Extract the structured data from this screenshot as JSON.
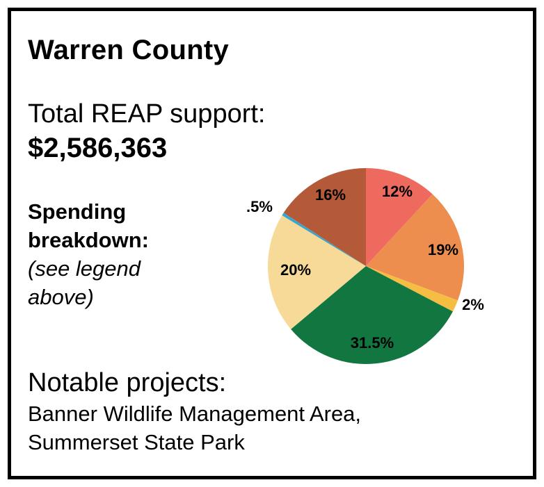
{
  "title": "Warren County",
  "support": {
    "label": "Total REAP support:",
    "value": "$2,586,363"
  },
  "breakdown": {
    "line1": "Spending",
    "line2": "breakdown:",
    "note1": "(see legend",
    "note2": "above)"
  },
  "projects": {
    "label": "Notable projects:",
    "items": [
      "Banner Wildlife Management Area,",
      "Summerset State Park"
    ]
  },
  "chart_data": {
    "type": "pie",
    "values": [
      12,
      19,
      2,
      31.5,
      20,
      0.5,
      16
    ],
    "labels": [
      "12%",
      "19%",
      "2%",
      "31.5%",
      "20%",
      ".5%",
      "16%"
    ],
    "colors": [
      "#EE6A5E",
      "#EE8E4E",
      "#F5BE43",
      "#117640",
      "#F8DA98",
      "#3AA6CF",
      "#B55A39"
    ],
    "start": "12 o'clock",
    "direction": "clockwise"
  }
}
